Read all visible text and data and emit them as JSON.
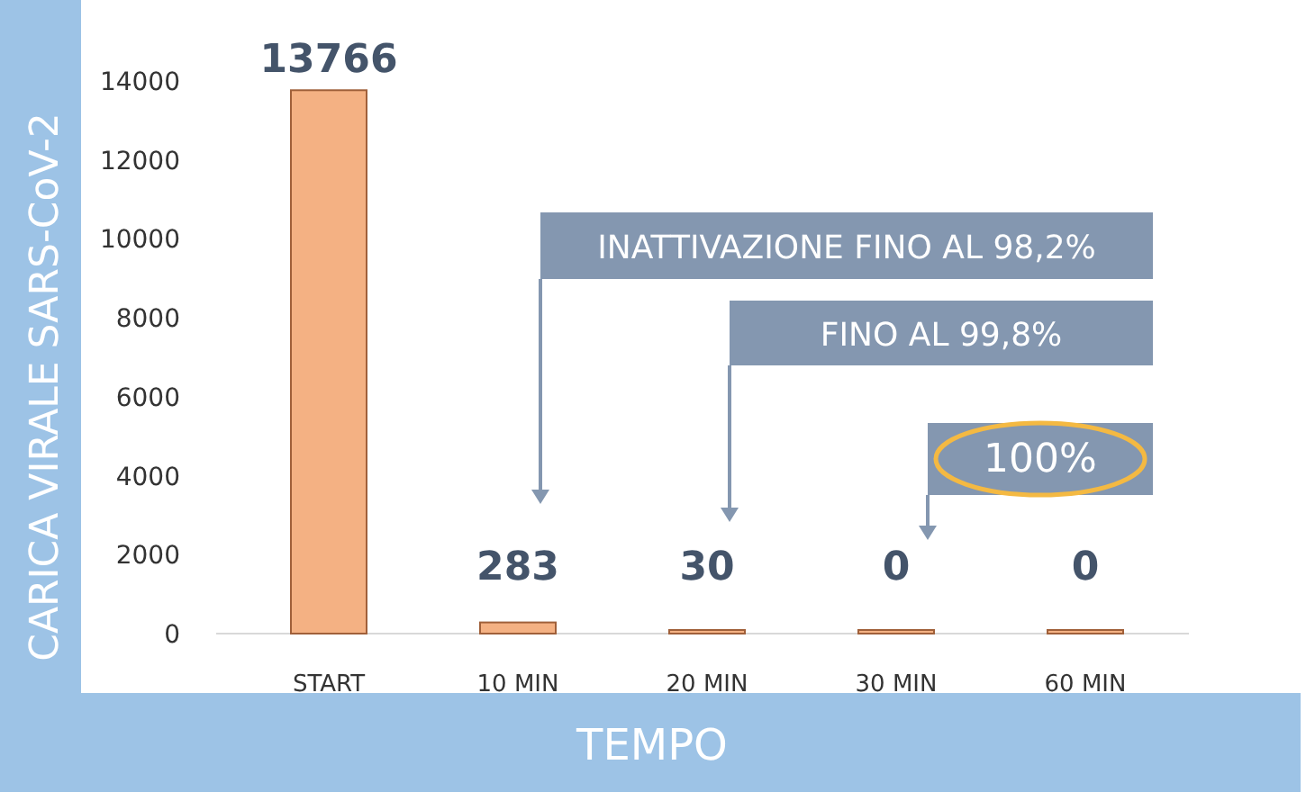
{
  "chart_data": {
    "type": "bar",
    "xlabel": "TEMPO",
    "ylabel": "CARICA VIRALE SARS-CoV-2",
    "categories": [
      "START",
      "10 MIN",
      "20 MIN",
      "30 MIN",
      "60 MIN"
    ],
    "values": [
      13766,
      283,
      30,
      0,
      0
    ],
    "color": "#f4b183",
    "ylim": [
      0,
      14000
    ],
    "yticks": [
      0,
      2000,
      4000,
      6000,
      8000,
      10000,
      12000,
      14000
    ],
    "data_labels": true,
    "annotations": [
      "INATTIVAZIONE FINO AL 98,2%",
      "FINO AL 99,8%",
      "100%"
    ]
  }
}
